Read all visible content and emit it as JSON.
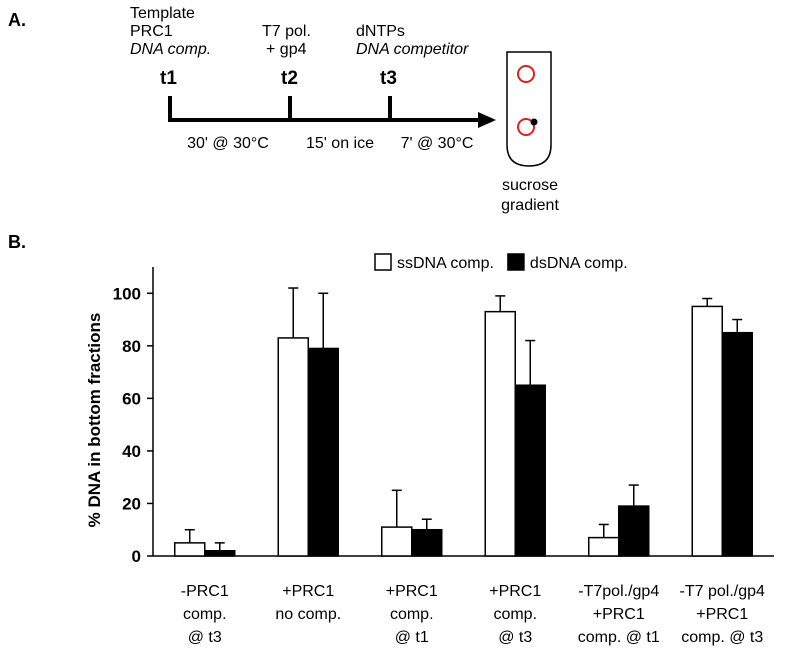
{
  "diagram": {
    "label": "A.",
    "steps": [
      {
        "lines": [
          "Template",
          "PRC1"
        ],
        "italic_line": "DNA comp.",
        "tag": "t1"
      },
      {
        "lines": [
          "T7 pol.",
          "+ gp4"
        ],
        "tag": "t2"
      },
      {
        "lines": [
          "dNTPs"
        ],
        "italic_line": "DNA competitor",
        "tag": "t3"
      }
    ],
    "intervals": [
      "30' @ 30°C",
      "15' on ice",
      "7' @ 30°C"
    ],
    "tube_label": [
      "sucrose",
      "gradient"
    ]
  },
  "chart_data": {
    "type": "bar",
    "panel_label": "B.",
    "ylabel": "% DNA in bottom fractions",
    "categories": [
      [
        "-PRC1",
        "comp.",
        "@  t3"
      ],
      [
        "+PRC1",
        "no comp."
      ],
      [
        "+PRC1",
        "comp.",
        "@ t1"
      ],
      [
        "+PRC1",
        "comp.",
        "@ t3"
      ],
      [
        "-T7pol./gp4",
        "+PRC1",
        "comp. @ t1"
      ],
      [
        "-T7 pol./gp4",
        "+PRC1",
        "comp. @ t3"
      ]
    ],
    "series": [
      {
        "name": "ssDNA comp.",
        "color": "#ffffff",
        "values": [
          5,
          83,
          11,
          93,
          7,
          95
        ],
        "errors": [
          5,
          19,
          14,
          6,
          5,
          3
        ]
      },
      {
        "name": "dsDNA comp.",
        "color": "#000000",
        "values": [
          2,
          79,
          10,
          65,
          19,
          85
        ],
        "errors": [
          3,
          21,
          4,
          17,
          8,
          5
        ]
      }
    ],
    "ylim": [
      0,
      110
    ],
    "yticks": [
      0,
      20,
      40,
      60,
      80,
      100
    ],
    "legend": "top"
  }
}
